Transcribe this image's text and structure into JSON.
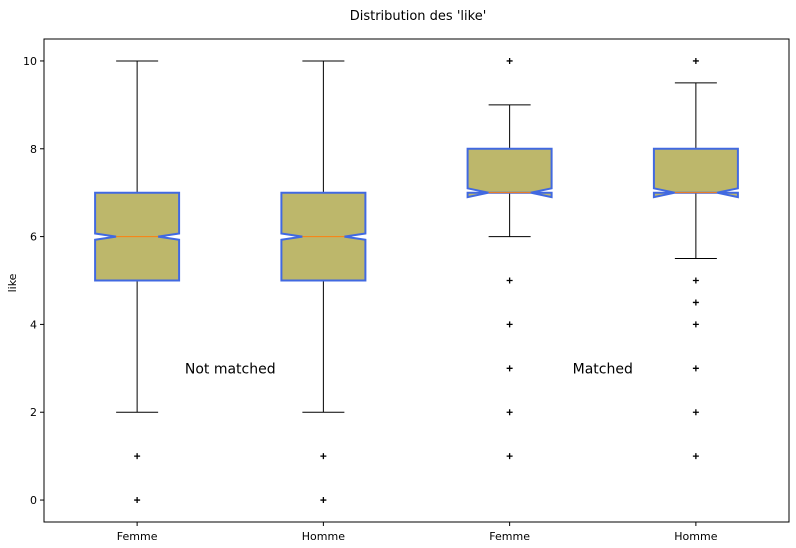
{
  "chart_data": {
    "type": "box",
    "title": "Distribution des 'like'",
    "xlabel": "",
    "ylabel": "like",
    "ylim": [
      -0.5,
      10.5
    ],
    "yticks": [
      0,
      2,
      4,
      6,
      8,
      10
    ],
    "grid": false,
    "notched": true,
    "colors": {
      "box_fill": "#bdb76b",
      "box_edge": "#4169e1",
      "median": "#ff7f0e",
      "whisker": "#000000",
      "flier": "#000000"
    },
    "annotations": [
      {
        "text": "Not matched",
        "x": 1.5,
        "y": 3
      },
      {
        "text": "Matched",
        "x": 3.5,
        "y": 3
      }
    ],
    "boxes": [
      {
        "label": "Femme",
        "q1": 5,
        "median": 6,
        "q3": 7,
        "notch_low": 5.93,
        "notch_high": 6.07,
        "whisker_low": 2,
        "whisker_high": 10,
        "fliers": [
          1,
          0
        ]
      },
      {
        "label": "Homme",
        "q1": 5,
        "median": 6,
        "q3": 7,
        "notch_low": 5.93,
        "notch_high": 6.07,
        "whisker_low": 2,
        "whisker_high": 10,
        "fliers": [
          1,
          0
        ]
      },
      {
        "label": "Femme",
        "q1": 7,
        "median": 7,
        "q3": 8,
        "notch_low": 6.9,
        "notch_high": 7.1,
        "whisker_low": 6,
        "whisker_high": 9,
        "fliers": [
          10,
          5,
          4,
          3,
          2,
          1
        ]
      },
      {
        "label": "Homme",
        "q1": 7,
        "median": 7,
        "q3": 8,
        "notch_low": 6.9,
        "notch_high": 7.1,
        "whisker_low": 5.5,
        "whisker_high": 9.5,
        "fliers": [
          10,
          5,
          4.5,
          4,
          3,
          2,
          1
        ]
      }
    ]
  }
}
